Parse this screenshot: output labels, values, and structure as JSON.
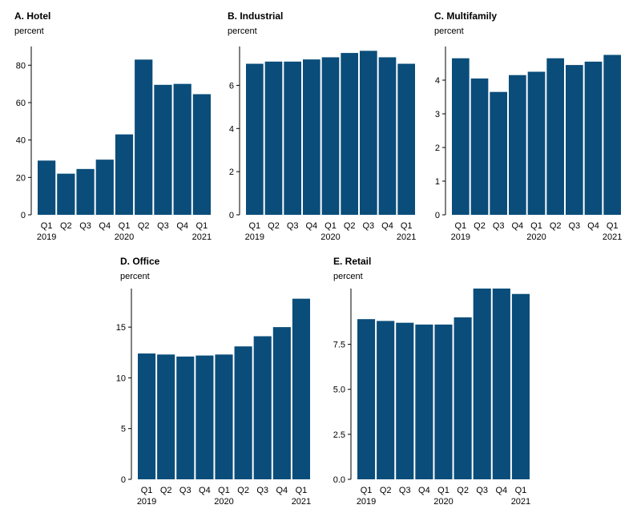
{
  "bar_color": "#0a4d7a",
  "chart_data": [
    {
      "type": "bar",
      "title": "A. Hotel",
      "ylabel": "percent",
      "ylim": [
        0,
        90
      ],
      "yticks": [
        0,
        20,
        40,
        60,
        80
      ],
      "ytick_labels": [
        "0",
        "20",
        "40",
        "60",
        "80"
      ],
      "categories": [
        "Q1",
        "Q2",
        "Q3",
        "Q4",
        "Q1",
        "Q2",
        "Q3",
        "Q4",
        "Q1"
      ],
      "years": [
        {
          "at": 0,
          "label": "2019"
        },
        {
          "at": 4,
          "label": "2020"
        },
        {
          "at": 8,
          "label": "2021"
        }
      ],
      "values": [
        29,
        22,
        24.5,
        29.5,
        43,
        83,
        69.5,
        70,
        64.5
      ]
    },
    {
      "type": "bar",
      "title": "B. Industrial",
      "ylabel": "percent",
      "ylim": [
        0,
        7.8
      ],
      "yticks": [
        0,
        2,
        4,
        6
      ],
      "ytick_labels": [
        "0",
        "2",
        "4",
        "6"
      ],
      "categories": [
        "Q1",
        "Q2",
        "Q3",
        "Q4",
        "Q1",
        "Q2",
        "Q3",
        "Q4",
        "Q1"
      ],
      "years": [
        {
          "at": 0,
          "label": "2019"
        },
        {
          "at": 4,
          "label": "2020"
        },
        {
          "at": 8,
          "label": "2021"
        }
      ],
      "values": [
        7.0,
        7.1,
        7.1,
        7.2,
        7.3,
        7.5,
        7.6,
        7.3,
        7.0
      ]
    },
    {
      "type": "bar",
      "title": "C. Multifamily",
      "ylabel": "percent",
      "ylim": [
        0,
        5.0
      ],
      "yticks": [
        0,
        1,
        2,
        3,
        4
      ],
      "ytick_labels": [
        "0",
        "1",
        "2",
        "3",
        "4"
      ],
      "categories": [
        "Q1",
        "Q2",
        "Q3",
        "Q4",
        "Q1",
        "Q2",
        "Q3",
        "Q4",
        "Q1"
      ],
      "years": [
        {
          "at": 0,
          "label": "2019"
        },
        {
          "at": 4,
          "label": "2020"
        },
        {
          "at": 8,
          "label": "2021"
        }
      ],
      "values": [
        4.65,
        4.05,
        3.65,
        4.15,
        4.25,
        4.65,
        4.45,
        4.55,
        4.75
      ]
    },
    {
      "type": "bar",
      "title": "D. Office",
      "ylabel": "percent",
      "ylim": [
        0,
        18.8
      ],
      "yticks": [
        0,
        5,
        10,
        15
      ],
      "ytick_labels": [
        "0",
        "5",
        "10",
        "15"
      ],
      "categories": [
        "Q1",
        "Q2",
        "Q3",
        "Q4",
        "Q1",
        "Q2",
        "Q3",
        "Q4",
        "Q1"
      ],
      "years": [
        {
          "at": 0,
          "label": "2019"
        },
        {
          "at": 4,
          "label": "2020"
        },
        {
          "at": 8,
          "label": "2021"
        }
      ],
      "values": [
        12.4,
        12.3,
        12.1,
        12.2,
        12.3,
        13.1,
        14.1,
        15.0,
        17.8
      ]
    },
    {
      "type": "bar",
      "title": "E. Retail",
      "ylabel": "percent",
      "ylim": [
        0,
        10.6
      ],
      "yticks": [
        0,
        2.5,
        5,
        7.5
      ],
      "ytick_labels": [
        "0.0",
        "2.5",
        "5.0",
        "7.5"
      ],
      "categories": [
        "Q1",
        "Q2",
        "Q3",
        "Q4",
        "Q1",
        "Q2",
        "Q3",
        "Q4",
        "Q1"
      ],
      "years": [
        {
          "at": 0,
          "label": "2019"
        },
        {
          "at": 4,
          "label": "2020"
        },
        {
          "at": 8,
          "label": "2021"
        }
      ],
      "values": [
        8.9,
        8.8,
        8.7,
        8.6,
        8.6,
        9.0,
        10.6,
        10.6,
        10.3
      ]
    }
  ]
}
